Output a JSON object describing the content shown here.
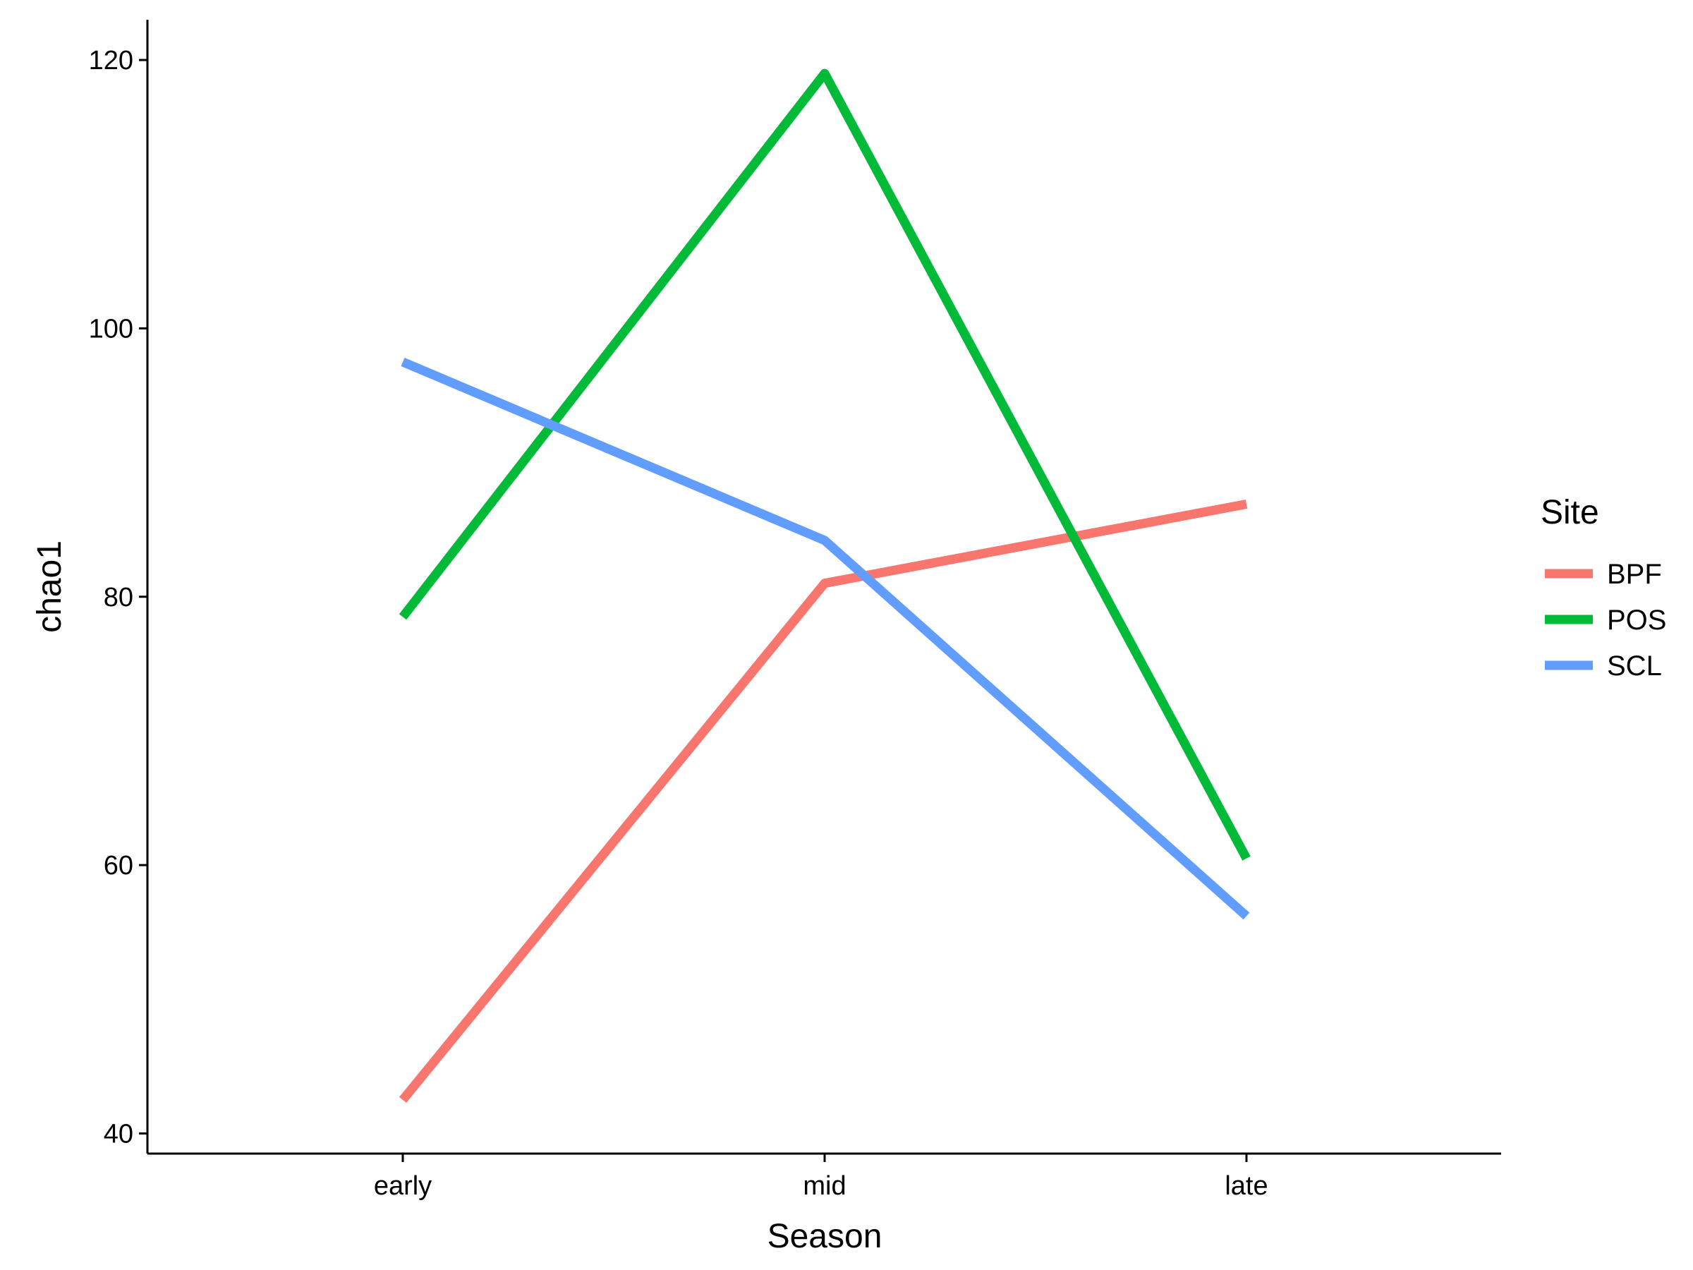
{
  "chart_data": {
    "type": "line",
    "title": "",
    "xlabel": "Season",
    "ylabel": "chao1",
    "categories": [
      "early",
      "mid",
      "late"
    ],
    "ylim": [
      38.5,
      123
    ],
    "yticks": [
      40,
      60,
      80,
      100,
      120
    ],
    "grid": false,
    "legend": {
      "title": "Site",
      "placement": "right"
    },
    "series": [
      {
        "name": "BPF",
        "color": "#F8766D",
        "values": [
          42.5,
          81.0,
          86.9
        ]
      },
      {
        "name": "POS",
        "color": "#00BA38",
        "values": [
          78.5,
          119.0,
          60.5
        ]
      },
      {
        "name": "SCL",
        "color": "#619CFF",
        "values": [
          97.5,
          84.2,
          56.2
        ]
      }
    ]
  }
}
